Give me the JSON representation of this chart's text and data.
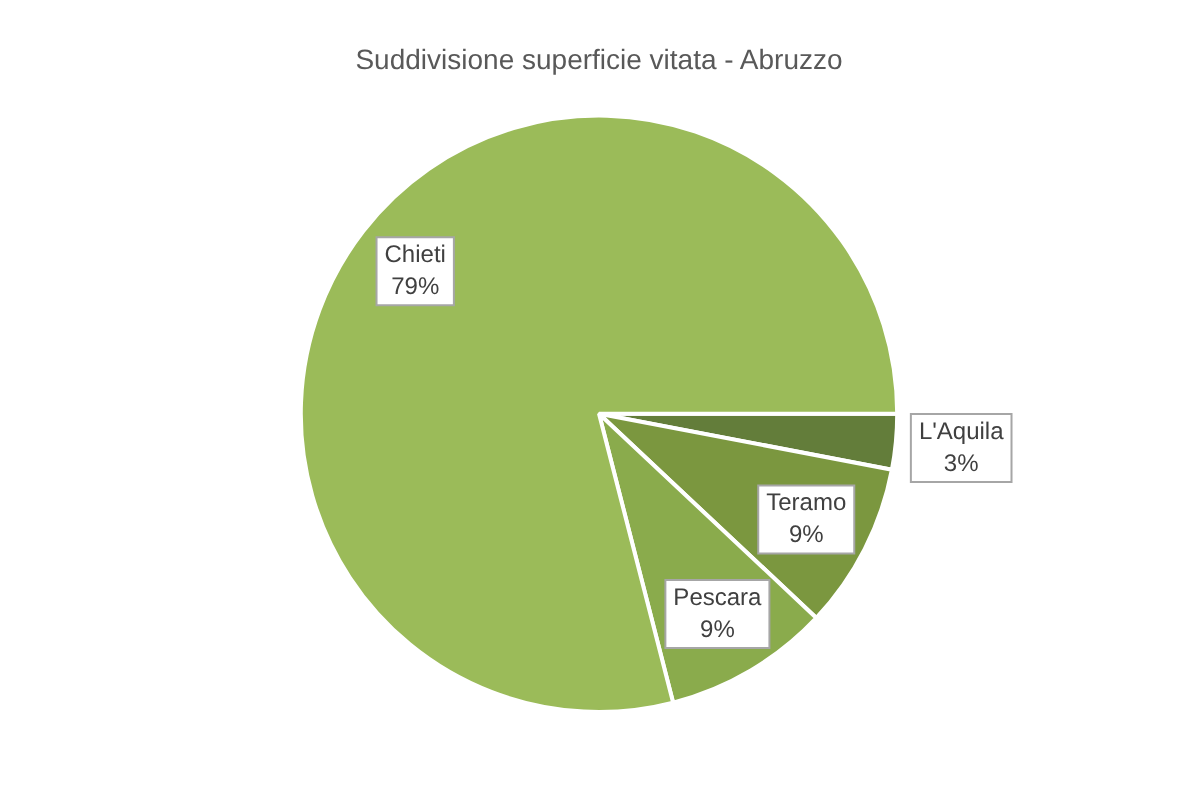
{
  "chart_data": {
    "type": "pie",
    "title": "Suddivisione superficie vitata - Abruzzo",
    "categories": [
      "L'Aquila",
      "Teramo",
      "Pescara",
      "Chieti"
    ],
    "values": [
      3,
      9,
      9,
      79
    ],
    "colors": [
      "#637d3a",
      "#7b973f",
      "#8aab4c",
      "#9bbb59"
    ],
    "value_labels": [
      "3%",
      "9%",
      "9%",
      "79%"
    ],
    "legend": false
  }
}
